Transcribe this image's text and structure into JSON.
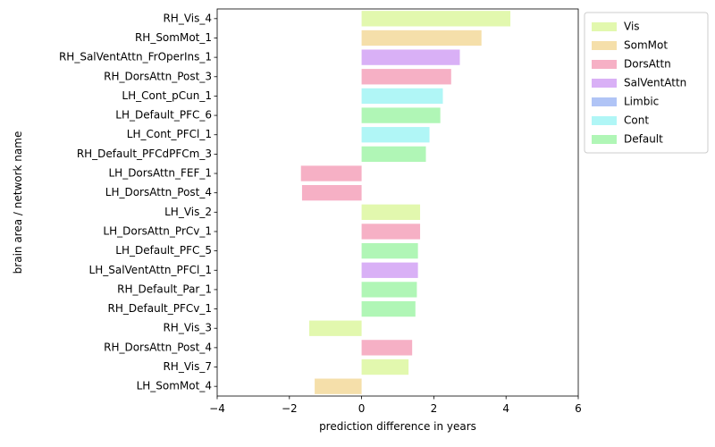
{
  "chart_data": {
    "type": "bar",
    "orientation": "horizontal",
    "title": "",
    "xlabel": "prediction difference in years",
    "ylabel": "brain area / network name",
    "xlim": [
      -4,
      6
    ],
    "xticks": [
      -4,
      -2,
      0,
      2,
      4,
      6
    ],
    "grid": false,
    "legend_position": "top-right, outside plot",
    "networks": [
      {
        "name": "Vis",
        "color": "#e2f8ae"
      },
      {
        "name": "SomMot",
        "color": "#f5dfaa"
      },
      {
        "name": "DorsAttn",
        "color": "#f6b0c5"
      },
      {
        "name": "SalVentAttn",
        "color": "#d9b0f6"
      },
      {
        "name": "Limbic",
        "color": "#b0c4f6"
      },
      {
        "name": "Cont",
        "color": "#b0f6f6"
      },
      {
        "name": "Default",
        "color": "#b0f6b6"
      }
    ],
    "bars": [
      {
        "label": "RH_Vis_4",
        "value": 4.12,
        "network": "Vis"
      },
      {
        "label": "RH_SomMot_1",
        "value": 3.32,
        "network": "SomMot"
      },
      {
        "label": "RH_SalVentAttn_FrOperIns_1",
        "value": 2.72,
        "network": "SalVentAttn"
      },
      {
        "label": "RH_DorsAttn_Post_3",
        "value": 2.48,
        "network": "DorsAttn"
      },
      {
        "label": "LH_Cont_pCun_1",
        "value": 2.25,
        "network": "Cont"
      },
      {
        "label": "LH_Default_PFC_6",
        "value": 2.18,
        "network": "Default"
      },
      {
        "label": "LH_Cont_PFCl_1",
        "value": 1.88,
        "network": "Cont"
      },
      {
        "label": "RH_Default_PFCdPFCm_3",
        "value": 1.78,
        "network": "Default"
      },
      {
        "label": "LH_DorsAttn_FEF_1",
        "value": -1.68,
        "network": "DorsAttn"
      },
      {
        "label": "LH_DorsAttn_Post_4",
        "value": -1.65,
        "network": "DorsAttn"
      },
      {
        "label": "LH_Vis_2",
        "value": 1.62,
        "network": "Vis"
      },
      {
        "label": "LH_DorsAttn_PrCv_1",
        "value": 1.62,
        "network": "DorsAttn"
      },
      {
        "label": "LH_Default_PFC_5",
        "value": 1.56,
        "network": "Default"
      },
      {
        "label": "LH_SalVentAttn_PFCl_1",
        "value": 1.56,
        "network": "SalVentAttn"
      },
      {
        "label": "RH_Default_Par_1",
        "value": 1.53,
        "network": "Default"
      },
      {
        "label": "RH_Default_PFCv_1",
        "value": 1.49,
        "network": "Default"
      },
      {
        "label": "RH_Vis_3",
        "value": -1.45,
        "network": "Vis"
      },
      {
        "label": "RH_DorsAttn_Post_4",
        "value": 1.4,
        "network": "DorsAttn"
      },
      {
        "label": "RH_Vis_7",
        "value": 1.3,
        "network": "Vis"
      },
      {
        "label": "LH_SomMot_4",
        "value": -1.3,
        "network": "SomMot"
      }
    ]
  }
}
